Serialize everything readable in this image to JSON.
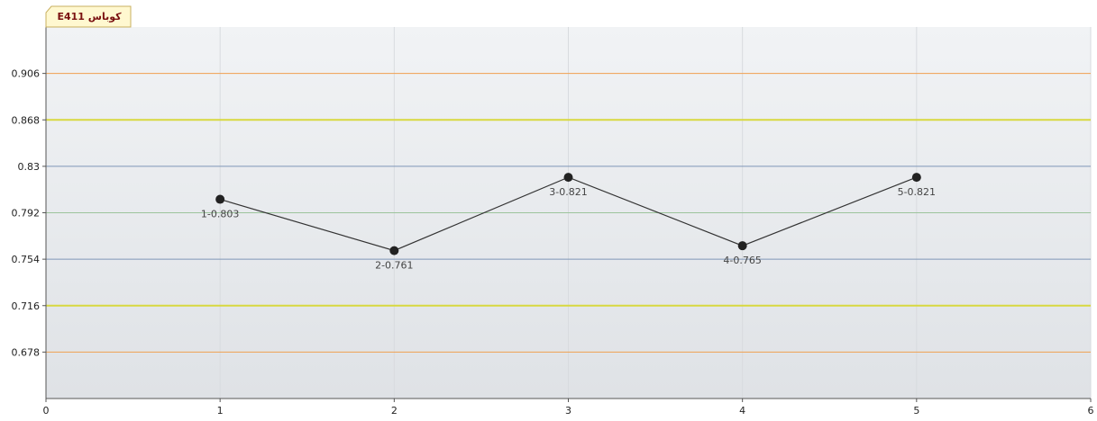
{
  "chart_data": {
    "type": "line",
    "title": "کوباس E411",
    "x": [
      1,
      2,
      3,
      4,
      5
    ],
    "series": [
      {
        "values": [
          0.803,
          0.761,
          0.821,
          0.765,
          0.821
        ],
        "point_labels": [
          "1-0.803",
          "2-0.761",
          "3-0.821",
          "4-0.765",
          "5-0.821"
        ]
      }
    ],
    "xlim": [
      0,
      6
    ],
    "ylim": [
      0.64,
      0.944
    ],
    "x_ticks": [
      0,
      1,
      2,
      3,
      4,
      5,
      6
    ],
    "y_ticks": [
      0.678,
      0.716,
      0.754,
      0.792,
      0.83,
      0.868,
      0.906
    ],
    "y_tick_labels": [
      "0.678",
      "0.716",
      "0.754",
      "0.792",
      "0.83",
      "0.868",
      "0.906"
    ],
    "reference_lines": [
      {
        "value": 0.906,
        "color": "#f0a050"
      },
      {
        "value": 0.868,
        "color": "#d8d840"
      },
      {
        "value": 0.83,
        "color": "#7f96b8"
      },
      {
        "value": 0.792,
        "color": "#9cc49c"
      },
      {
        "value": 0.754,
        "color": "#7f96b8"
      },
      {
        "value": 0.716,
        "color": "#d8d840"
      },
      {
        "value": 0.678,
        "color": "#f0a050"
      }
    ],
    "line_color": "#333333",
    "marker_color": "#222222",
    "grid": true
  }
}
